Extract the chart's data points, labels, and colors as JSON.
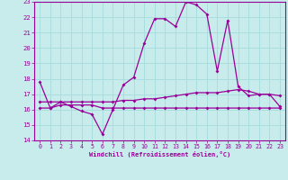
{
  "xlabel": "Windchill (Refroidissement éolien,°C)",
  "bg_color": "#c8ecec",
  "line_color": "#990099",
  "grid_color": "#aadddd",
  "xlim": [
    -0.5,
    23.5
  ],
  "ylim": [
    14,
    23
  ],
  "yticks": [
    14,
    15,
    16,
    17,
    18,
    19,
    20,
    21,
    22,
    23
  ],
  "xticks": [
    0,
    1,
    2,
    3,
    4,
    5,
    6,
    7,
    8,
    9,
    10,
    11,
    12,
    13,
    14,
    15,
    16,
    17,
    18,
    19,
    20,
    21,
    22,
    23
  ],
  "line1_x": [
    0,
    1,
    2,
    3,
    4,
    5,
    6,
    7,
    8,
    9,
    10,
    11,
    12,
    13,
    14,
    15,
    16,
    17,
    18,
    19,
    20,
    21,
    22,
    23
  ],
  "line1_y": [
    17.8,
    16.1,
    16.5,
    16.2,
    15.9,
    15.7,
    14.4,
    16.0,
    17.6,
    18.1,
    20.3,
    21.9,
    21.9,
    21.4,
    23.0,
    22.8,
    22.2,
    18.5,
    21.8,
    17.5,
    16.9,
    17.0,
    17.0,
    16.2
  ],
  "line2_x": [
    0,
    1,
    2,
    3,
    4,
    5,
    6,
    7,
    8,
    9,
    10,
    11,
    12,
    13,
    14,
    15,
    16,
    17,
    18,
    19,
    20,
    21,
    22,
    23
  ],
  "line2_y": [
    16.5,
    16.5,
    16.5,
    16.5,
    16.5,
    16.5,
    16.5,
    16.5,
    16.6,
    16.6,
    16.7,
    16.7,
    16.8,
    16.9,
    17.0,
    17.1,
    17.1,
    17.1,
    17.2,
    17.3,
    17.2,
    17.0,
    17.0,
    16.9
  ],
  "line3_x": [
    0,
    1,
    2,
    3,
    4,
    5,
    6,
    7,
    8,
    9,
    10,
    11,
    12,
    13,
    14,
    15,
    16,
    17,
    18,
    19,
    20,
    21,
    22,
    23
  ],
  "line3_y": [
    16.1,
    16.1,
    16.3,
    16.3,
    16.3,
    16.3,
    16.1,
    16.1,
    16.1,
    16.1,
    16.1,
    16.1,
    16.1,
    16.1,
    16.1,
    16.1,
    16.1,
    16.1,
    16.1,
    16.1,
    16.1,
    16.1,
    16.1,
    16.1
  ]
}
